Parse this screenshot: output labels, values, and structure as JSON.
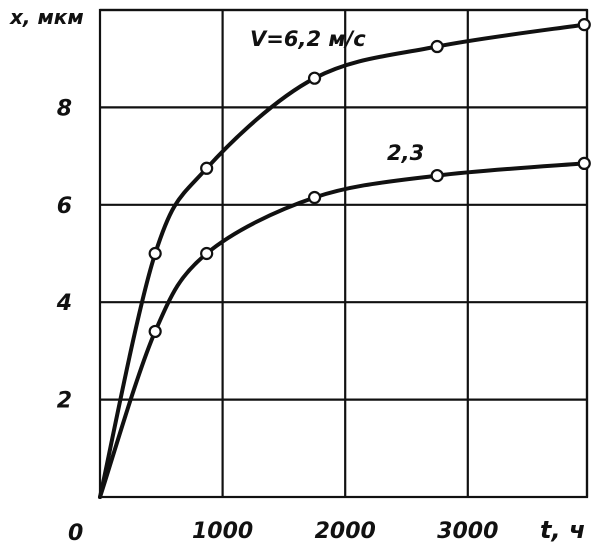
{
  "chart_data": {
    "type": "line",
    "ylabel": "x, мкм",
    "xlabel": "t, ч",
    "origin_label": "0",
    "xlim": [
      0,
      4000
    ],
    "ylim": [
      0,
      10
    ],
    "x_ticks": [
      {
        "value": 1000,
        "label": "1000"
      },
      {
        "value": 2000,
        "label": "2000"
      },
      {
        "value": 3000,
        "label": "3000"
      }
    ],
    "y_ticks": [
      {
        "value": 2,
        "label": "2"
      },
      {
        "value": 4,
        "label": "4"
      },
      {
        "value": 6,
        "label": "6"
      },
      {
        "value": 8,
        "label": "8"
      }
    ],
    "grid": true,
    "series": [
      {
        "name": "V=6,2 м/с",
        "points": [
          [
            0,
            0
          ],
          [
            450,
            5.0
          ],
          [
            870,
            6.75
          ],
          [
            1750,
            8.6
          ],
          [
            2750,
            9.25
          ],
          [
            3950,
            9.7
          ]
        ]
      },
      {
        "name": "2,3",
        "points": [
          [
            0,
            0
          ],
          [
            450,
            3.4
          ],
          [
            870,
            5.0
          ],
          [
            1750,
            6.15
          ],
          [
            2750,
            6.6
          ],
          [
            3950,
            6.85
          ]
        ]
      }
    ]
  }
}
